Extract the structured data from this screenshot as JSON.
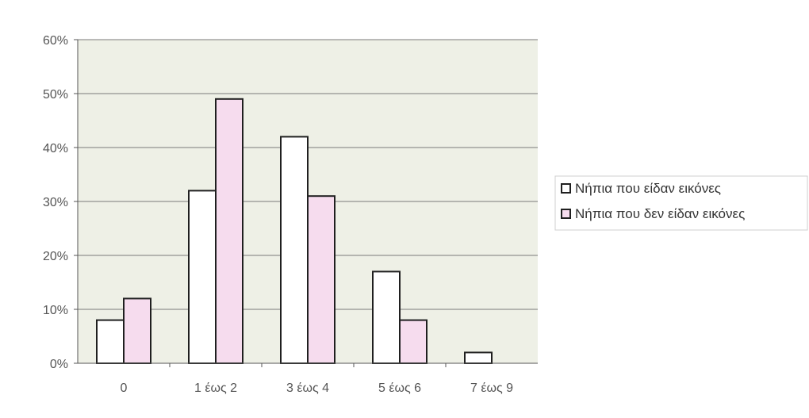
{
  "colors": {
    "plot_bg": "#eef0e6",
    "gridline": "#7a7a7a",
    "axis": "#555555",
    "bar_outline": "#1f1f1f",
    "series_1_fill": "#ffffff",
    "series_2_fill": "#f6dcee"
  },
  "chart_data": {
    "type": "bar",
    "categories": [
      "0",
      "1 έως 2",
      "3 έως 4",
      "5 έως 6",
      "7 έως 9"
    ],
    "series": [
      {
        "name": "Νήπια που είδαν εικόνες",
        "values": [
          8,
          32,
          42,
          17,
          2
        ]
      },
      {
        "name": "Νήπια που δεν είδαν εικόνες",
        "values": [
          12,
          49,
          31,
          8,
          0
        ]
      }
    ],
    "y_ticks": [
      "0%",
      "10%",
      "20%",
      "30%",
      "40%",
      "50%",
      "60%"
    ],
    "ylim": [
      0,
      60
    ],
    "y_unit": "%",
    "grid": "horizontal",
    "legend_position": "right"
  }
}
